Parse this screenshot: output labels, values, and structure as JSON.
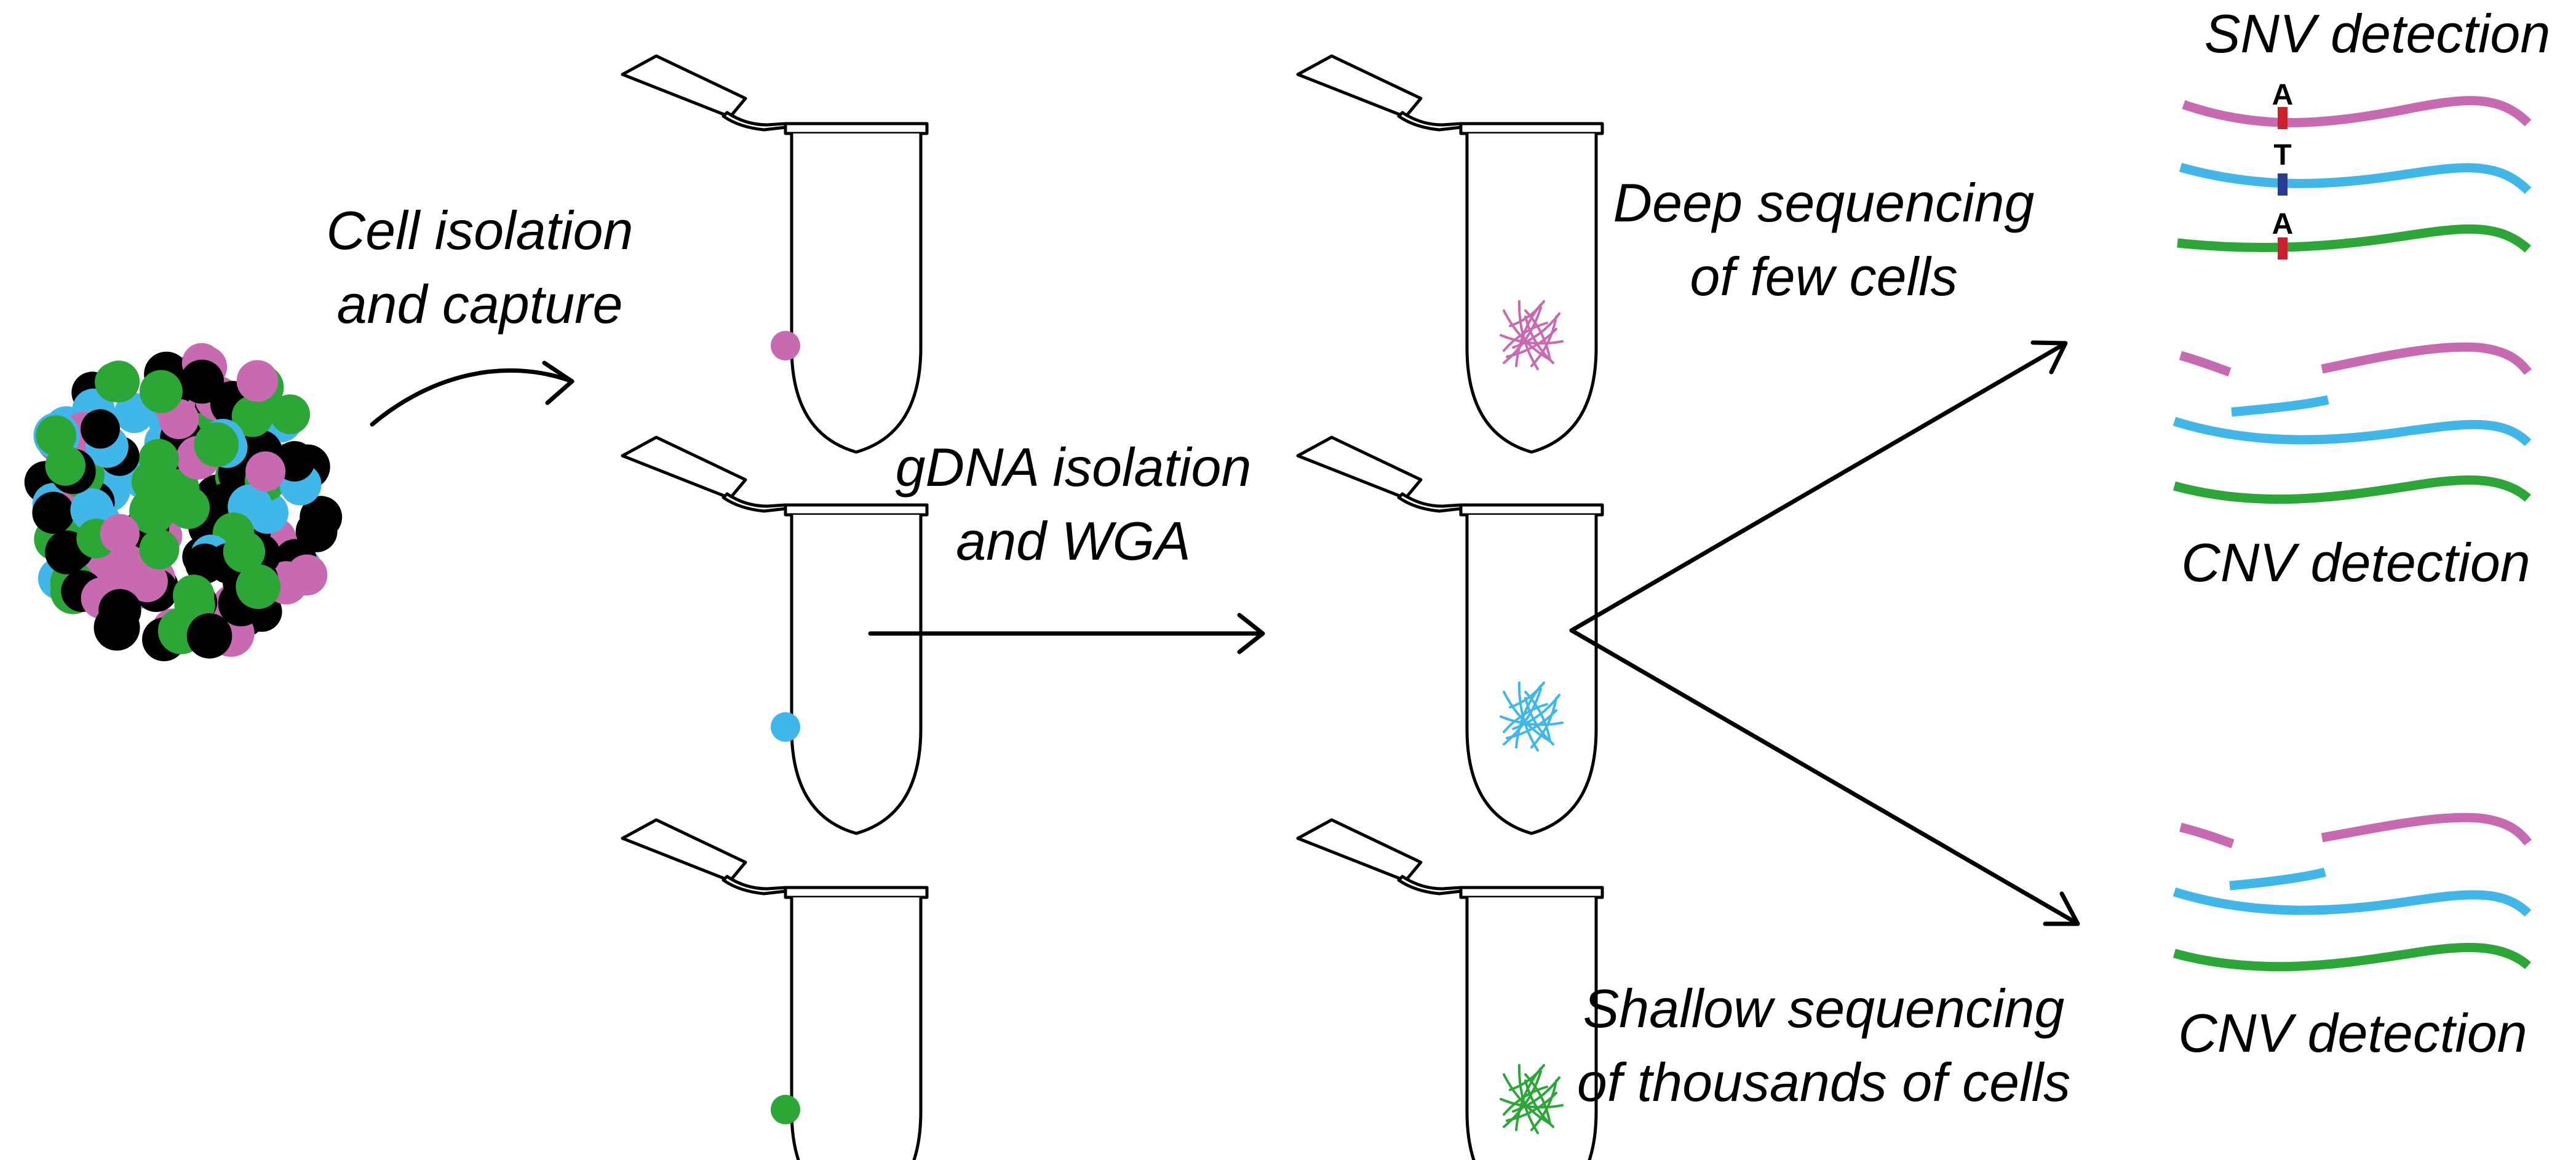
{
  "colors": {
    "pink": "#c86ab2",
    "blue": "#41b7e9",
    "green": "#2ba637",
    "black": "#000000",
    "snv_red": "#c8202c",
    "snv_navy": "#2a3c8f"
  },
  "steps": {
    "isolation_line1": "Cell isolation",
    "isolation_line2": "and capture",
    "gdna_line1": "gDNA isolation",
    "gdna_line2": "and WGA",
    "deep_line1": "Deep sequencing",
    "deep_line2": "of few cells",
    "shallow_line1": "Shallow sequencing",
    "shallow_line2": "of thousands of cells"
  },
  "outputs": {
    "snv_title": "SNV detection",
    "cnv_title_mid": "CNV detection",
    "cnv_title_bottom": "CNV detection",
    "snv_bases": [
      "A",
      "T",
      "A"
    ]
  },
  "tubes": {
    "cell_tubes": [
      "pink",
      "blue",
      "green"
    ],
    "dna_tubes": [
      "pink",
      "blue",
      "green"
    ]
  }
}
